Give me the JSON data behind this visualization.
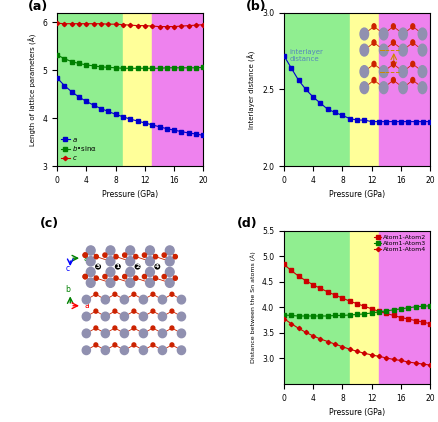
{
  "panel_a": {
    "pressure": [
      0,
      1,
      2,
      3,
      4,
      5,
      6,
      7,
      8,
      9,
      10,
      11,
      12,
      13,
      14,
      15,
      16,
      17,
      18,
      19,
      20
    ],
    "a": [
      4.84,
      4.68,
      4.55,
      4.44,
      4.35,
      4.27,
      4.2,
      4.14,
      4.08,
      4.03,
      3.98,
      3.94,
      3.9,
      3.86,
      3.82,
      3.78,
      3.75,
      3.72,
      3.69,
      3.67,
      3.64
    ],
    "b_sina": [
      5.32,
      5.24,
      5.18,
      5.14,
      5.11,
      5.09,
      5.07,
      5.06,
      5.05,
      5.04,
      5.04,
      5.04,
      5.04,
      5.04,
      5.04,
      5.05,
      5.05,
      5.05,
      5.05,
      5.05,
      5.06
    ],
    "c": [
      5.98,
      5.97,
      5.97,
      5.97,
      5.97,
      5.97,
      5.97,
      5.96,
      5.96,
      5.95,
      5.94,
      5.93,
      5.93,
      5.92,
      5.91,
      5.91,
      5.91,
      5.92,
      5.93,
      5.94,
      5.95
    ],
    "color_a": "#0000cd",
    "color_b": "#008000",
    "color_c": "#cc0000",
    "ylabel": "Length of lattice parameters (Å)",
    "xlabel": "Pressure (GPa)",
    "ylim": [
      3.0,
      6.2
    ],
    "yticks": [
      3,
      4,
      5,
      6
    ],
    "xticks": [
      0,
      4,
      8,
      12,
      16,
      20
    ],
    "zone1_end": 9,
    "zone2_end": 13,
    "zone1_color": "#90ee90",
    "zone2_color": "#ffff99",
    "zone3_color": "#ee82ee"
  },
  "panel_b": {
    "pressure": [
      0,
      1,
      2,
      3,
      4,
      5,
      6,
      7,
      8,
      9,
      10,
      11,
      12,
      13,
      14,
      15,
      16,
      17,
      18,
      19,
      20
    ],
    "interlayer": [
      2.72,
      2.64,
      2.56,
      2.5,
      2.45,
      2.41,
      2.37,
      2.35,
      2.33,
      2.31,
      2.3,
      2.3,
      2.29,
      2.29,
      2.29,
      2.29,
      2.29,
      2.29,
      2.29,
      2.29,
      2.29
    ],
    "color": "#0000cd",
    "ylabel": "Interlayer distance (Å)",
    "xlabel": "Pressure (GPa)",
    "ylim": [
      2.0,
      3.0
    ],
    "yticks": [
      2.0,
      2.5,
      3.0
    ],
    "xticks": [
      0,
      4,
      8,
      12,
      16,
      20
    ],
    "zone1_color": "#90ee90",
    "zone2_color": "#ffff99",
    "zone3_color": "#ee82ee",
    "zone1_end": 9,
    "zone2_end": 13,
    "annotation_text": "interlayer\ndistance",
    "annotation_color": "#5588bb"
  },
  "panel_d": {
    "pressure": [
      0,
      1,
      2,
      3,
      4,
      5,
      6,
      7,
      8,
      9,
      10,
      11,
      12,
      13,
      14,
      15,
      16,
      17,
      18,
      19,
      20
    ],
    "atom12": [
      4.84,
      4.72,
      4.61,
      4.52,
      4.44,
      4.37,
      4.3,
      4.24,
      4.18,
      4.12,
      4.07,
      4.02,
      3.97,
      3.92,
      3.88,
      3.84,
      3.8,
      3.77,
      3.74,
      3.71,
      3.68
    ],
    "atom13": [
      3.85,
      3.84,
      3.83,
      3.83,
      3.83,
      3.83,
      3.83,
      3.84,
      3.84,
      3.85,
      3.86,
      3.87,
      3.89,
      3.91,
      3.93,
      3.95,
      3.97,
      3.99,
      4.01,
      4.02,
      4.03
    ],
    "atom14": [
      3.78,
      3.68,
      3.59,
      3.51,
      3.44,
      3.38,
      3.33,
      3.28,
      3.23,
      3.18,
      3.14,
      3.1,
      3.07,
      3.04,
      3.01,
      2.98,
      2.96,
      2.93,
      2.91,
      2.89,
      2.87
    ],
    "color12": "#cc0000",
    "color13": "#008000",
    "color14": "#cc0000",
    "ylabel": "Distance between the Sn atoms (Å)",
    "xlabel": "Pressure (GPa)",
    "ylim": [
      2.5,
      5.5
    ],
    "yticks": [
      3.0,
      3.5,
      4.0,
      4.5,
      5.0,
      5.5
    ],
    "xticks": [
      0,
      4,
      8,
      12,
      16,
      20
    ],
    "zone1_color": "#90ee90",
    "zone2_color": "#ffff99",
    "zone3_color": "#ee82ee",
    "zone1_end": 9,
    "zone2_end": 13
  }
}
